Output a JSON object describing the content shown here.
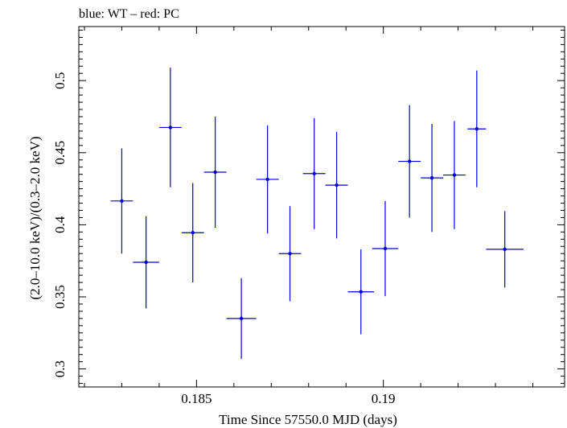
{
  "chart_data": {
    "type": "scatter",
    "title": "blue: WT – red: PC",
    "xlabel": "Time Since 57550.0 MJD (days)",
    "ylabel": "(2.0–10.0 keV)/(0.3–2.0 keV)",
    "xlim": [
      0.18185,
      0.19485
    ],
    "ylim": [
      0.2875,
      0.5375
    ],
    "x_ticks": [
      {
        "value": 0.185,
        "label": "0.185"
      },
      {
        "value": 0.19,
        "label": "0.19"
      }
    ],
    "y_ticks": [
      {
        "value": 0.3,
        "label": "0.3"
      },
      {
        "value": 0.35,
        "label": "0.35"
      },
      {
        "value": 0.4,
        "label": "0.4"
      },
      {
        "value": 0.45,
        "label": "0.45"
      },
      {
        "value": 0.5,
        "label": "0.5"
      }
    ],
    "grid": false,
    "colors": {
      "series": "#0000dd",
      "axes": "#000000",
      "background": "#ffffff"
    },
    "series": [
      {
        "points": [
          {
            "x": 0.183,
            "y": 0.4165,
            "xerr": 0.0003,
            "yerr_low": 0.0365,
            "yerr_high": 0.0365
          },
          {
            "x": 0.18365,
            "y": 0.374,
            "xerr": 0.00035,
            "yerr_low": 0.032,
            "yerr_high": 0.032
          },
          {
            "x": 0.1843,
            "y": 0.4675,
            "xerr": 0.0003,
            "yerr_low": 0.0415,
            "yerr_high": 0.0415
          },
          {
            "x": 0.1849,
            "y": 0.3945,
            "xerr": 0.0003,
            "yerr_low": 0.0345,
            "yerr_high": 0.0345
          },
          {
            "x": 0.1855,
            "y": 0.4365,
            "xerr": 0.0003,
            "yerr_low": 0.0385,
            "yerr_high": 0.0385
          },
          {
            "x": 0.1862,
            "y": 0.335,
            "xerr": 0.0004,
            "yerr_low": 0.028,
            "yerr_high": 0.028
          },
          {
            "x": 0.1869,
            "y": 0.4315,
            "xerr": 0.0003,
            "yerr_low": 0.0375,
            "yerr_high": 0.0375
          },
          {
            "x": 0.1875,
            "y": 0.38,
            "xerr": 0.0003,
            "yerr_low": 0.033,
            "yerr_high": 0.033
          },
          {
            "x": 0.18815,
            "y": 0.4355,
            "xerr": 0.0003,
            "yerr_low": 0.0385,
            "yerr_high": 0.0385
          },
          {
            "x": 0.18875,
            "y": 0.4275,
            "xerr": 0.0003,
            "yerr_low": 0.037,
            "yerr_high": 0.037
          },
          {
            "x": 0.1894,
            "y": 0.3535,
            "xerr": 0.00035,
            "yerr_low": 0.0295,
            "yerr_high": 0.0295
          },
          {
            "x": 0.19005,
            "y": 0.3835,
            "xerr": 0.00035,
            "yerr_low": 0.033,
            "yerr_high": 0.033
          },
          {
            "x": 0.1907,
            "y": 0.444,
            "xerr": 0.0003,
            "yerr_low": 0.039,
            "yerr_high": 0.039
          },
          {
            "x": 0.1913,
            "y": 0.4325,
            "xerr": 0.0003,
            "yerr_low": 0.0375,
            "yerr_high": 0.0375
          },
          {
            "x": 0.1919,
            "y": 0.4345,
            "xerr": 0.0003,
            "yerr_low": 0.0375,
            "yerr_high": 0.0375
          },
          {
            "x": 0.1925,
            "y": 0.4665,
            "xerr": 0.00025,
            "yerr_low": 0.0405,
            "yerr_high": 0.0405
          },
          {
            "x": 0.19325,
            "y": 0.383,
            "xerr": 0.0005,
            "yerr_low": 0.0265,
            "yerr_high": 0.0265
          }
        ]
      }
    ]
  }
}
